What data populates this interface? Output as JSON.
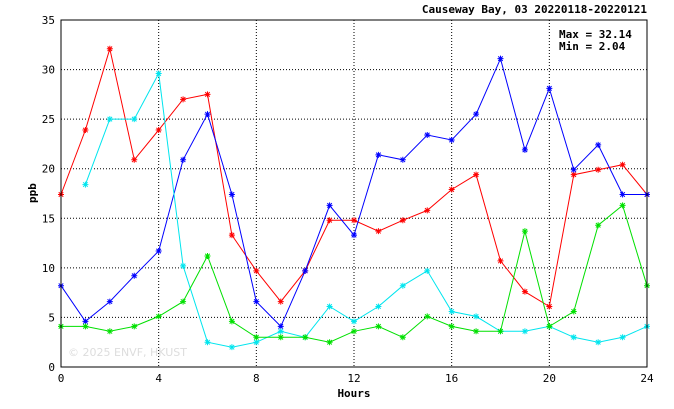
{
  "chart_data": {
    "type": "line",
    "title": "Causeway Bay, 03 20220118-20220121",
    "xlabel": "Hours",
    "ylabel": "ppb",
    "xlim": [
      0,
      24
    ],
    "ylim": [
      0,
      35
    ],
    "xticks": [
      0,
      4,
      8,
      12,
      16,
      20,
      24
    ],
    "yticks": [
      0,
      5,
      10,
      15,
      20,
      25,
      30,
      35
    ],
    "grid": true,
    "marker": "asterisk",
    "stats": {
      "max": "Max = 32.14",
      "min": "Min =  2.04"
    },
    "watermark": "© 2025  ENVF, HKUST",
    "series": [
      {
        "color": "#ff0000",
        "x": [
          0,
          1,
          2,
          3,
          4,
          5,
          6,
          7,
          8,
          9,
          10,
          11,
          12,
          13,
          14,
          15,
          16,
          17,
          18,
          19,
          20,
          21,
          22,
          23,
          24
        ],
        "y": [
          17.4,
          23.9,
          32.1,
          20.9,
          23.9,
          27.0,
          27.5,
          13.3,
          9.7,
          6.6,
          9.7,
          14.8,
          14.8,
          13.7,
          14.8,
          15.8,
          17.9,
          19.4,
          10.7,
          7.6,
          6.1,
          19.4,
          19.9,
          20.4,
          17.4
        ]
      },
      {
        "color": "#0000ff",
        "x": [
          0,
          1,
          2,
          3,
          4,
          5,
          6,
          7,
          8,
          9,
          10,
          11,
          12,
          13,
          14,
          15,
          16,
          17,
          18,
          19,
          20,
          21,
          22,
          23,
          24
        ],
        "y": [
          8.2,
          4.6,
          6.6,
          9.2,
          11.7,
          20.9,
          25.5,
          17.4,
          6.6,
          4.1,
          9.7,
          16.3,
          13.3,
          21.4,
          20.9,
          23.4,
          22.9,
          25.5,
          31.1,
          21.9,
          28.1,
          19.9,
          22.4,
          17.4,
          17.4
        ]
      },
      {
        "color": "#00e5ee",
        "x": [
          1,
          2,
          3,
          4,
          5,
          6,
          7,
          8,
          9,
          10,
          11,
          12,
          13,
          14,
          15,
          16,
          17,
          18,
          19,
          20,
          21,
          22,
          23,
          24
        ],
        "y": [
          18.4,
          25.0,
          25.0,
          29.6,
          10.2,
          2.5,
          2.0,
          2.5,
          3.6,
          3.0,
          6.1,
          4.6,
          6.1,
          8.2,
          9.7,
          5.6,
          5.1,
          3.6,
          3.6,
          4.1,
          3.0,
          2.5,
          3.0,
          4.1
        ]
      },
      {
        "color": "#00e000",
        "x": [
          0,
          1,
          2,
          3,
          4,
          5,
          6,
          7,
          8,
          9,
          10,
          11,
          12,
          13,
          14,
          15,
          16,
          17,
          18,
          19,
          20,
          21,
          22,
          23,
          24
        ],
        "y": [
          4.1,
          4.1,
          3.6,
          4.1,
          5.1,
          6.6,
          11.2,
          4.6,
          3.0,
          3.0,
          3.0,
          2.5,
          3.6,
          4.1,
          3.0,
          5.1,
          4.1,
          3.6,
          3.6,
          13.7,
          4.1,
          5.6,
          14.3,
          16.3,
          8.2
        ]
      }
    ]
  }
}
